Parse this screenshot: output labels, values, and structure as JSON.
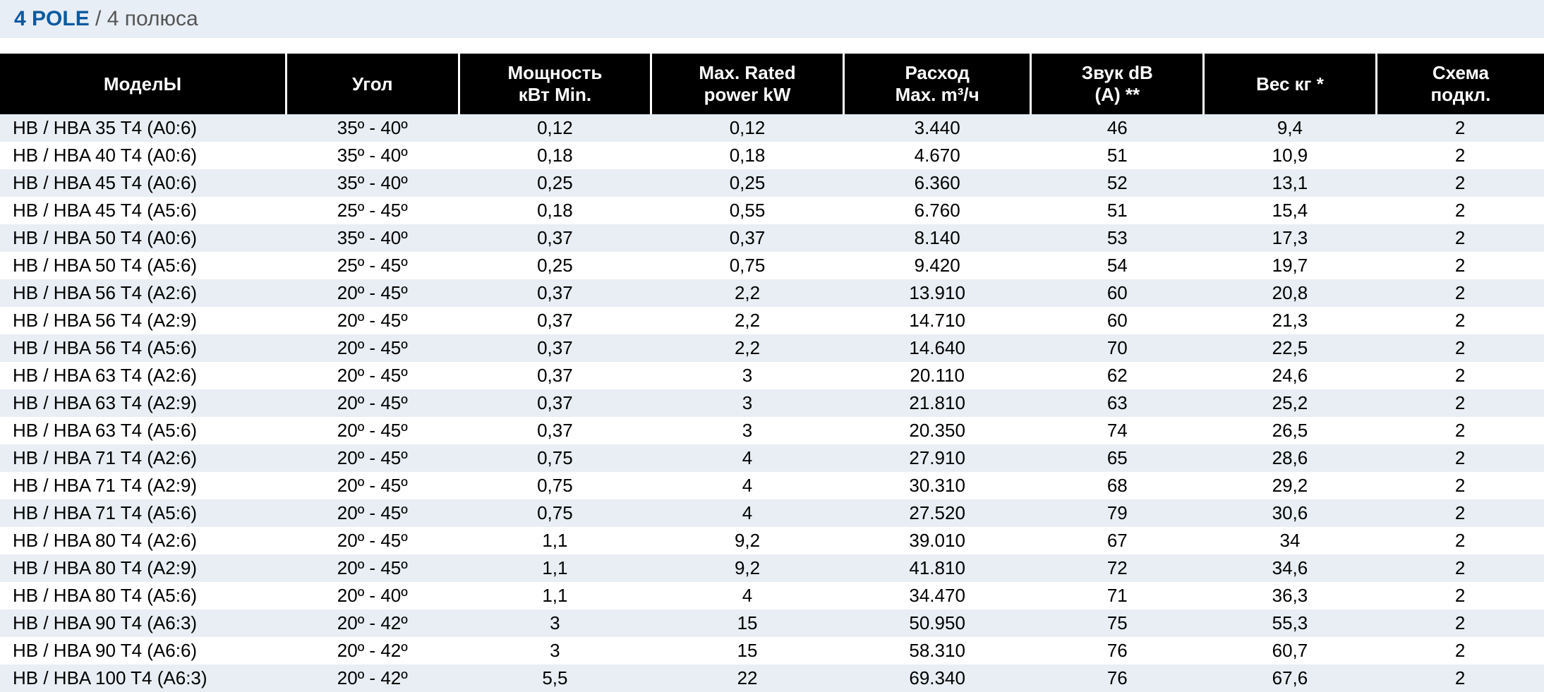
{
  "title": {
    "bold": "4 POLE",
    "light": " / 4 полюса"
  },
  "headers": {
    "model": "МоделЫ",
    "angle": "Угол",
    "pmin_l1": "Мощность",
    "pmin_l2": "кВт Min.",
    "pmax_l1": "Max. Rated",
    "pmax_l2": "power kW",
    "flow_l1": "Расход",
    "flow_l2": "Max. m³/ч",
    "db_l1": "Звук dB",
    "db_l2": "(A) **",
    "weight": "Вес кг *",
    "scheme_l1": "Схема",
    "scheme_l2": "подкл."
  },
  "rows": [
    {
      "model": "HB / HBA 35 T4 (A0:6)",
      "angle": "35º - 40º",
      "pmin": "0,12",
      "pmax": "0,12",
      "flow": "3.440",
      "db": "46",
      "wt": "9,4",
      "sch": "2"
    },
    {
      "model": "HB / HBA 40 T4 (A0:6)",
      "angle": "35º - 40º",
      "pmin": "0,18",
      "pmax": "0,18",
      "flow": "4.670",
      "db": "51",
      "wt": "10,9",
      "sch": "2"
    },
    {
      "model": "HB / HBA 45 T4 (A0:6)",
      "angle": "35º - 40º",
      "pmin": "0,25",
      "pmax": "0,25",
      "flow": "6.360",
      "db": "52",
      "wt": "13,1",
      "sch": "2"
    },
    {
      "model": "HB / HBA 45 T4 (A5:6)",
      "angle": "25º - 45º",
      "pmin": "0,18",
      "pmax": "0,55",
      "flow": "6.760",
      "db": "51",
      "wt": "15,4",
      "sch": "2"
    },
    {
      "model": "HB / HBA 50 T4 (A0:6)",
      "angle": "35º - 40º",
      "pmin": "0,37",
      "pmax": "0,37",
      "flow": "8.140",
      "db": "53",
      "wt": "17,3",
      "sch": "2"
    },
    {
      "model": "HB / HBA 50 T4 (A5:6)",
      "angle": "25º - 45º",
      "pmin": "0,25",
      "pmax": "0,75",
      "flow": "9.420",
      "db": "54",
      "wt": "19,7",
      "sch": "2"
    },
    {
      "model": "HB / HBA 56 T4 (A2:6)",
      "angle": "20º - 45º",
      "pmin": "0,37",
      "pmax": "2,2",
      "flow": "13.910",
      "db": "60",
      "wt": "20,8",
      "sch": "2"
    },
    {
      "model": "HB / HBA 56 T4 (A2:9)",
      "angle": "20º - 45º",
      "pmin": "0,37",
      "pmax": "2,2",
      "flow": "14.710",
      "db": "60",
      "wt": "21,3",
      "sch": "2"
    },
    {
      "model": "HB / HBA 56 T4 (A5:6)",
      "angle": "20º - 45º",
      "pmin": "0,37",
      "pmax": "2,2",
      "flow": "14.640",
      "db": "70",
      "wt": "22,5",
      "sch": "2"
    },
    {
      "model": "HB / HBA 63 T4 (A2:6)",
      "angle": "20º - 45º",
      "pmin": "0,37",
      "pmax": "3",
      "flow": "20.110",
      "db": "62",
      "wt": "24,6",
      "sch": "2"
    },
    {
      "model": "HB / HBA 63 T4 (A2:9)",
      "angle": "20º - 45º",
      "pmin": "0,37",
      "pmax": "3",
      "flow": "21.810",
      "db": "63",
      "wt": "25,2",
      "sch": "2"
    },
    {
      "model": "HB / HBA 63 T4 (A5:6)",
      "angle": "20º - 45º",
      "pmin": "0,37",
      "pmax": "3",
      "flow": "20.350",
      "db": "74",
      "wt": "26,5",
      "sch": "2"
    },
    {
      "model": "HB / HBA 71 T4 (A2:6)",
      "angle": "20º - 45º",
      "pmin": "0,75",
      "pmax": "4",
      "flow": "27.910",
      "db": "65",
      "wt": "28,6",
      "sch": "2"
    },
    {
      "model": "HB / HBA 71 T4 (A2:9)",
      "angle": "20º - 45º",
      "pmin": "0,75",
      "pmax": "4",
      "flow": "30.310",
      "db": "68",
      "wt": "29,2",
      "sch": "2"
    },
    {
      "model": "HB / HBA 71 T4 (A5:6)",
      "angle": "20º - 45º",
      "pmin": "0,75",
      "pmax": "4",
      "flow": "27.520",
      "db": "79",
      "wt": "30,6",
      "sch": "2"
    },
    {
      "model": "HB / HBA 80 T4 (A2:6)",
      "angle": "20º - 45º",
      "pmin": "1,1",
      "pmax": "9,2",
      "flow": "39.010",
      "db": "67",
      "wt": "34",
      "sch": "2"
    },
    {
      "model": "HB / HBA 80 T4 (A2:9)",
      "angle": "20º - 45º",
      "pmin": "1,1",
      "pmax": "9,2",
      "flow": "41.810",
      "db": "72",
      "wt": "34,6",
      "sch": "2"
    },
    {
      "model": "HB / HBA 80 T4 (A5:6)",
      "angle": "20º - 40º",
      "pmin": "1,1",
      "pmax": "4",
      "flow": "34.470",
      "db": "71",
      "wt": "36,3",
      "sch": "2"
    },
    {
      "model": "HB / HBA 90 T4 (A6:3)",
      "angle": "20º - 42º",
      "pmin": "3",
      "pmax": "15",
      "flow": "50.950",
      "db": "75",
      "wt": "55,3",
      "sch": "2"
    },
    {
      "model": "HB / HBA 90 T4 (A6:6)",
      "angle": "20º - 42º",
      "pmin": "3",
      "pmax": "15",
      "flow": "58.310",
      "db": "76",
      "wt": "60,7",
      "sch": "2"
    },
    {
      "model": "HB / HBA 100 T4 (A6:3)",
      "angle": "20º - 42º",
      "pmin": "5,5",
      "pmax": "22",
      "flow": "69.340",
      "db": "76",
      "wt": "67,6",
      "sch": "2"
    }
  ],
  "style": {
    "header_bg": "#000000",
    "header_fg": "#ffffff",
    "row_odd_bg": "#e8eef3",
    "row_even_bg": "#ffffff",
    "title_bar_bg": "#e8eef5",
    "title_bold_color": "#0a5aa0",
    "title_light_color": "#555555",
    "font_size_title": 30,
    "font_size_table": 26
  }
}
